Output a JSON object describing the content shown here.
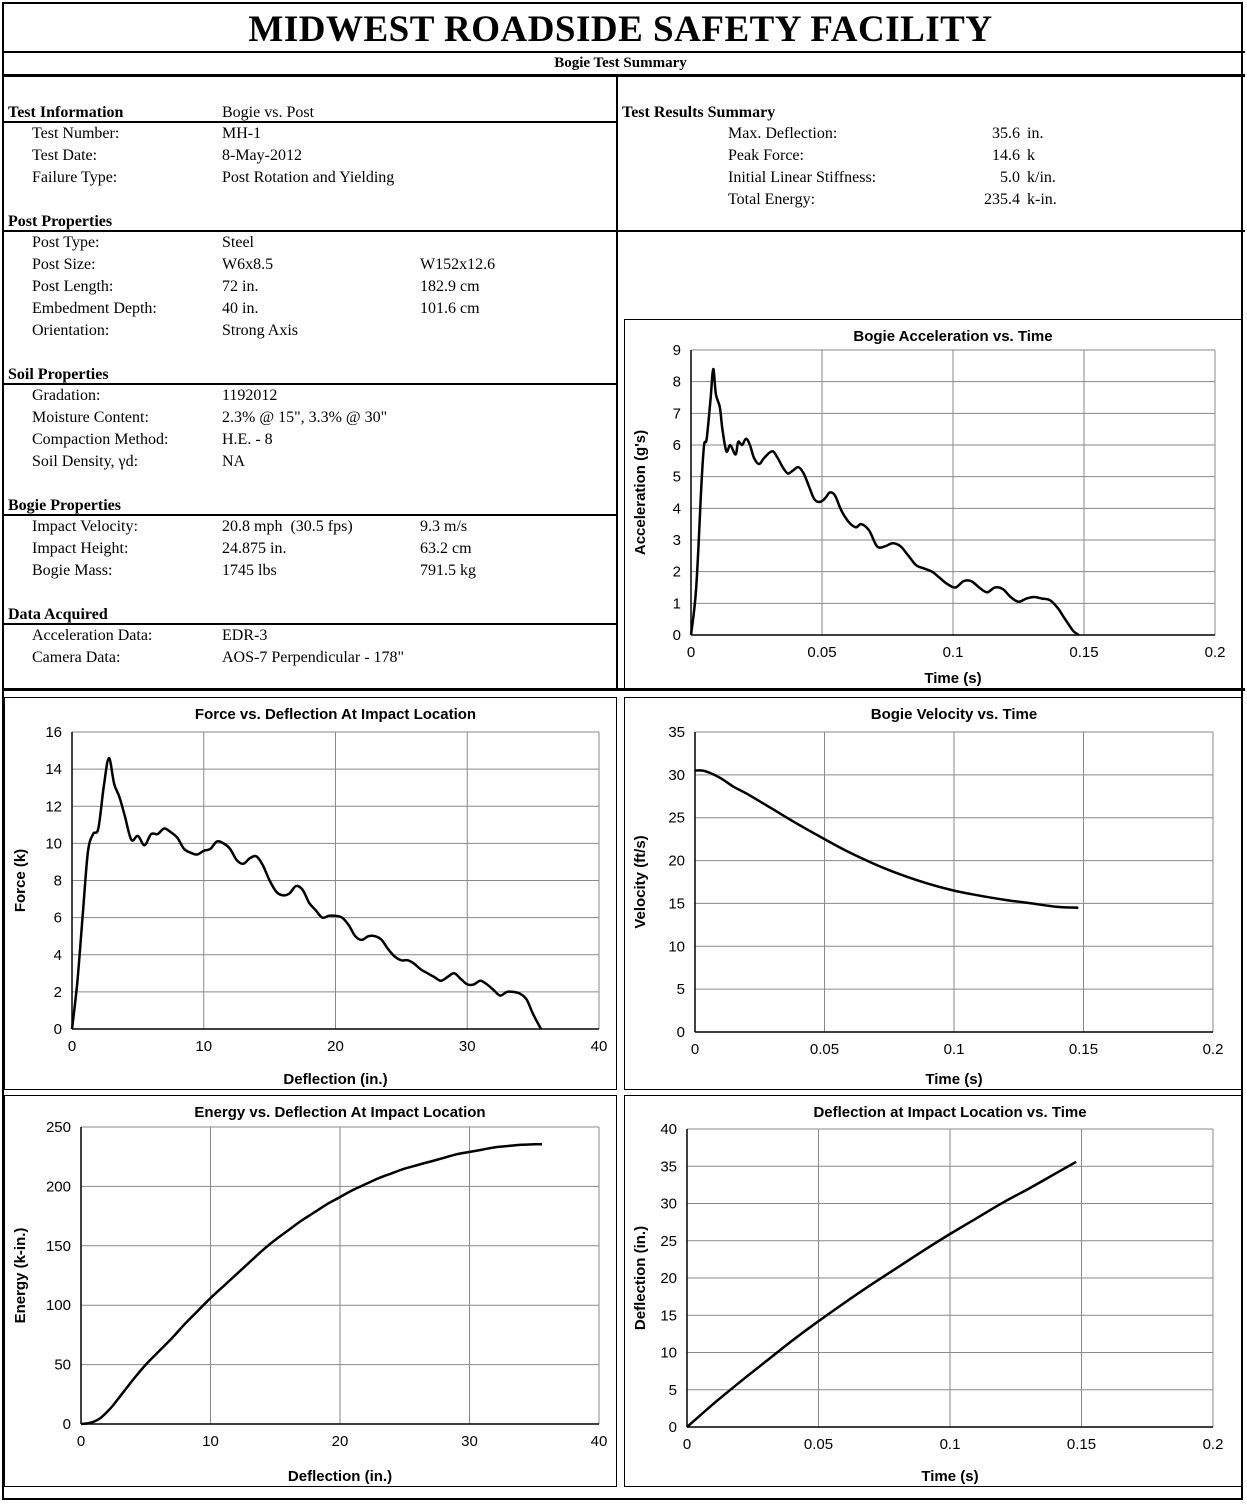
{
  "header": {
    "title": "MIDWEST ROADSIDE SAFETY FACILITY",
    "subtitle": "Bogie Test Summary"
  },
  "test_info": {
    "heading": "Test Information",
    "heading_value": "Bogie vs. Post",
    "rows": [
      {
        "label": "Test Number:",
        "value": "MH-1"
      },
      {
        "label": "Test Date:",
        "value": "8-May-2012"
      },
      {
        "label": "Failure Type:",
        "value": "Post Rotation and Yielding"
      }
    ]
  },
  "post_properties": {
    "heading": "Post Properties",
    "rows": [
      {
        "label": "Post Type:",
        "value": "Steel",
        "metric": ""
      },
      {
        "label": "Post Size:",
        "value": "W6x8.5",
        "metric": "W152x12.6"
      },
      {
        "label": "Post Length:",
        "value": "72 in.",
        "metric": "182.9 cm"
      },
      {
        "label": "Embedment Depth:",
        "value": "40 in.",
        "metric": "101.6 cm"
      },
      {
        "label": "Orientation:",
        "value": "Strong Axis",
        "metric": ""
      }
    ]
  },
  "soil_properties": {
    "heading": "Soil Properties",
    "rows": [
      {
        "label": "Gradation:",
        "value": "1192012"
      },
      {
        "label": "Moisture Content:",
        "value": "2.3% @ 15\", 3.3% @ 30\""
      },
      {
        "label": "Compaction Method:",
        "value": "H.E. - 8"
      },
      {
        "label": "Soil Density, γd:",
        "value": "NA"
      }
    ]
  },
  "bogie_properties": {
    "heading": "Bogie Properties",
    "rows": [
      {
        "label": "Impact Velocity:",
        "value": "20.8 mph  (30.5 fps)",
        "metric": "9.3 m/s"
      },
      {
        "label": "Impact Height:",
        "value": "24.875 in.",
        "metric": "63.2 cm"
      },
      {
        "label": "Bogie Mass:",
        "value": "1745 lbs",
        "metric": "791.5 kg"
      }
    ]
  },
  "data_acquired": {
    "heading": "Data Acquired",
    "rows": [
      {
        "label": "Acceleration Data:",
        "value": "EDR-3"
      },
      {
        "label": "Camera Data:",
        "value": "AOS-7 Perpendicular - 178\""
      }
    ]
  },
  "results": {
    "heading": "Test Results Summary",
    "rows": [
      {
        "label": "Max. Deflection:",
        "value": "35.6",
        "unit": "in."
      },
      {
        "label": "Peak Force:",
        "value": "14.6",
        "unit": "k"
      },
      {
        "label": "Initial Linear Stiffness:",
        "value": "5.0",
        "unit": "k/in."
      },
      {
        "label": "Total Energy:",
        "value": "235.4",
        "unit": "k-in."
      }
    ]
  },
  "chart_data": [
    {
      "id": "accel",
      "type": "line",
      "title": "Bogie Acceleration vs. Time",
      "xlabel": "Time (s)",
      "ylabel": "Acceleration (g's)",
      "xlim": [
        0,
        0.2
      ],
      "ylim": [
        0,
        9
      ],
      "xticks": [
        "0",
        "0.05",
        "0.1",
        "0.15",
        "0.2"
      ],
      "yticks": [
        "0",
        "1",
        "2",
        "3",
        "4",
        "5",
        "6",
        "7",
        "8",
        "9"
      ],
      "x": [
        0,
        0.002,
        0.004,
        0.005,
        0.006,
        0.0075,
        0.0085,
        0.0095,
        0.011,
        0.012,
        0.0135,
        0.015,
        0.017,
        0.018,
        0.0195,
        0.021,
        0.0225,
        0.024,
        0.026,
        0.028,
        0.031,
        0.033,
        0.035,
        0.037,
        0.039,
        0.041,
        0.043,
        0.045,
        0.047,
        0.049,
        0.051,
        0.053,
        0.055,
        0.057,
        0.059,
        0.061,
        0.063,
        0.065,
        0.068,
        0.071,
        0.074,
        0.077,
        0.08,
        0.083,
        0.086,
        0.089,
        0.092,
        0.095,
        0.098,
        0.101,
        0.104,
        0.107,
        0.11,
        0.113,
        0.116,
        0.119,
        0.122,
        0.125,
        0.128,
        0.131,
        0.134,
        0.137,
        0.14,
        0.142,
        0.144,
        0.146,
        0.148
      ],
      "y": [
        0,
        1.5,
        4.8,
        6.0,
        6.2,
        7.5,
        8.4,
        7.6,
        7.2,
        6.5,
        5.8,
        6.0,
        5.7,
        6.1,
        6.0,
        6.2,
        6.0,
        5.6,
        5.4,
        5.6,
        5.8,
        5.6,
        5.3,
        5.1,
        5.2,
        5.3,
        5.1,
        4.7,
        4.3,
        4.2,
        4.3,
        4.5,
        4.4,
        4.0,
        3.7,
        3.5,
        3.4,
        3.5,
        3.3,
        2.8,
        2.8,
        2.9,
        2.8,
        2.5,
        2.2,
        2.1,
        2.0,
        1.8,
        1.6,
        1.5,
        1.7,
        1.7,
        1.5,
        1.35,
        1.5,
        1.45,
        1.2,
        1.05,
        1.15,
        1.2,
        1.15,
        1.1,
        0.85,
        0.6,
        0.35,
        0.12,
        0
      ]
    },
    {
      "id": "force",
      "type": "line",
      "title": "Force vs. Deflection At Impact Location",
      "xlabel": "Deflection (in.)",
      "ylabel": "Force (k)",
      "xlim": [
        0,
        40
      ],
      "ylim": [
        0,
        16
      ],
      "xticks": [
        "0",
        "10",
        "20",
        "30",
        "40"
      ],
      "yticks": [
        "0",
        "2",
        "4",
        "6",
        "8",
        "10",
        "12",
        "14",
        "16"
      ],
      "x": [
        0,
        0.4,
        0.8,
        1.2,
        1.6,
        2.0,
        2.4,
        2.8,
        3.2,
        3.6,
        4.0,
        4.5,
        5.0,
        5.5,
        6.0,
        6.5,
        7.0,
        7.5,
        8.0,
        8.5,
        9.0,
        9.5,
        10.0,
        10.5,
        11.0,
        11.5,
        12.0,
        12.5,
        13.0,
        13.5,
        14.0,
        14.5,
        15.0,
        15.5,
        16.0,
        16.5,
        17.0,
        17.5,
        18.0,
        18.5,
        19.0,
        19.5,
        20.0,
        20.5,
        21.0,
        21.5,
        22.0,
        22.5,
        23.0,
        23.5,
        24.0,
        24.5,
        25.0,
        25.5,
        26.0,
        26.5,
        27.0,
        27.5,
        28.0,
        28.5,
        29.0,
        29.5,
        30.0,
        30.5,
        31.0,
        31.5,
        32.0,
        32.5,
        33.0,
        33.5,
        34.0,
        34.5,
        35.0,
        35.6
      ],
      "y": [
        0,
        2.5,
        6.0,
        9.5,
        10.5,
        10.8,
        13.0,
        14.6,
        13.2,
        12.5,
        11.5,
        10.2,
        10.4,
        9.9,
        10.5,
        10.5,
        10.8,
        10.6,
        10.3,
        9.7,
        9.5,
        9.4,
        9.6,
        9.7,
        10.1,
        10.0,
        9.7,
        9.1,
        8.9,
        9.2,
        9.3,
        8.8,
        8.0,
        7.4,
        7.2,
        7.3,
        7.7,
        7.5,
        6.8,
        6.4,
        6.0,
        6.1,
        6.1,
        6.0,
        5.6,
        5.0,
        4.8,
        5.0,
        5.0,
        4.8,
        4.3,
        3.9,
        3.7,
        3.7,
        3.5,
        3.2,
        3.0,
        2.8,
        2.6,
        2.8,
        3.0,
        2.7,
        2.4,
        2.4,
        2.6,
        2.4,
        2.1,
        1.8,
        2.0,
        2.0,
        1.9,
        1.6,
        0.8,
        0
      ]
    },
    {
      "id": "velocity",
      "type": "line",
      "title": "Bogie Velocity vs. Time",
      "xlabel": "Time (s)",
      "ylabel": "Velocity (ft/s)",
      "xlim": [
        0,
        0.2
      ],
      "ylim": [
        0,
        35
      ],
      "xticks": [
        "0",
        "0.05",
        "0.1",
        "0.15",
        "0.2"
      ],
      "yticks": [
        "0",
        "5",
        "10",
        "15",
        "20",
        "25",
        "30",
        "35"
      ],
      "x": [
        0,
        0.003,
        0.006,
        0.01,
        0.015,
        0.02,
        0.03,
        0.04,
        0.05,
        0.06,
        0.07,
        0.08,
        0.09,
        0.1,
        0.11,
        0.12,
        0.13,
        0.14,
        0.148
      ],
      "y": [
        30.5,
        30.5,
        30.2,
        29.6,
        28.6,
        27.8,
        26.0,
        24.2,
        22.5,
        20.9,
        19.5,
        18.3,
        17.3,
        16.5,
        15.9,
        15.4,
        15.0,
        14.6,
        14.5
      ]
    },
    {
      "id": "energy",
      "type": "line",
      "title": "Energy vs. Deflection At Impact Location",
      "xlabel": "Deflection (in.)",
      "ylabel": "Energy (k-in.)",
      "xlim": [
        0,
        40
      ],
      "ylim": [
        0,
        250
      ],
      "xticks": [
        "0",
        "10",
        "20",
        "30",
        "40"
      ],
      "yticks": [
        "0",
        "50",
        "100",
        "150",
        "200",
        "250"
      ],
      "x": [
        0,
        0.5,
        1,
        1.5,
        2,
        2.5,
        3,
        3.5,
        4,
        5,
        6,
        7,
        8,
        9,
        10,
        11,
        12,
        13,
        14,
        15,
        16,
        17,
        18,
        19,
        20,
        21,
        22,
        23,
        24,
        25,
        26,
        27,
        28,
        29,
        30,
        31,
        32,
        33,
        34,
        35,
        35.6
      ],
      "y": [
        0,
        0.5,
        2,
        5,
        10,
        16,
        23,
        30,
        37,
        50,
        61,
        72,
        84,
        95,
        106,
        116,
        126,
        136,
        146,
        155,
        163,
        171,
        178,
        185,
        191,
        197,
        202,
        207,
        211,
        215,
        218,
        221,
        224,
        227,
        229,
        231,
        233,
        234,
        235,
        235.4,
        235.4
      ]
    },
    {
      "id": "defl",
      "type": "line",
      "title": "Deflection at Impact Location vs. Time",
      "xlabel": "Time (s)",
      "ylabel": "Deflection (in.)",
      "xlim": [
        0,
        0.2
      ],
      "ylim": [
        0,
        40
      ],
      "xticks": [
        "0",
        "0.05",
        "0.1",
        "0.15",
        "0.2"
      ],
      "yticks": [
        "0",
        "5",
        "10",
        "15",
        "20",
        "25",
        "30",
        "35",
        "40"
      ],
      "x": [
        0,
        0.01,
        0.02,
        0.03,
        0.04,
        0.05,
        0.06,
        0.07,
        0.08,
        0.09,
        0.1,
        0.11,
        0.12,
        0.13,
        0.14,
        0.148
      ],
      "y": [
        0,
        3.1,
        6.0,
        8.8,
        11.6,
        14.2,
        16.7,
        19.1,
        21.4,
        23.7,
        25.9,
        28.0,
        30.1,
        32.0,
        34.0,
        35.6
      ]
    }
  ]
}
